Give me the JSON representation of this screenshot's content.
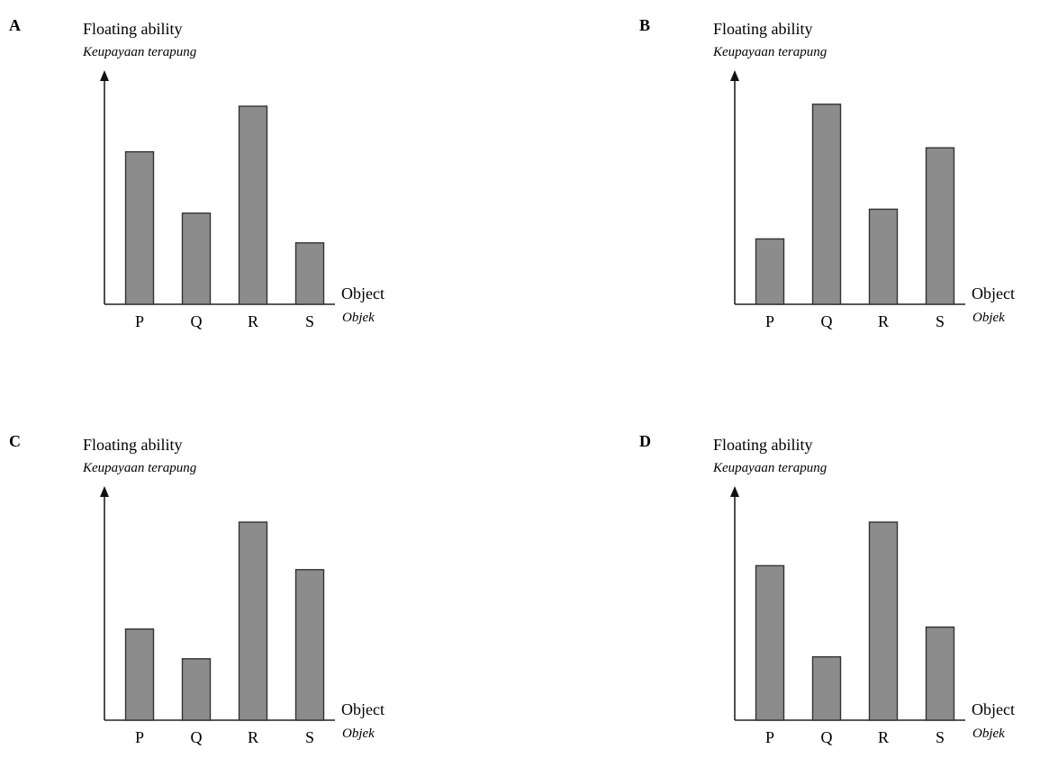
{
  "chart_data": [
    {
      "type": "bar",
      "option_label": "A",
      "ylabel": "Floating ability",
      "ylabel_sub": "Keupayaan terapung",
      "xlabel": "Object",
      "xlabel_sub": "Objek",
      "categories": [
        "P",
        "Q",
        "R",
        "S"
      ],
      "values": [
        77,
        46,
        100,
        31
      ],
      "ylim": [
        0,
        110
      ],
      "bar_color": "#8c8c8c",
      "grid": false
    },
    {
      "type": "bar",
      "option_label": "B",
      "ylabel": "Floating ability",
      "ylabel_sub": "Keupayaan terapung",
      "xlabel": "Object",
      "xlabel_sub": "Objek",
      "categories": [
        "P",
        "Q",
        "R",
        "S"
      ],
      "values": [
        33,
        101,
        48,
        79
      ],
      "ylim": [
        0,
        110
      ],
      "bar_color": "#8c8c8c",
      "grid": false
    },
    {
      "type": "bar",
      "option_label": "C",
      "ylabel": "Floating ability",
      "ylabel_sub": "Keupayaan terapung",
      "xlabel": "Object",
      "xlabel_sub": "Objek",
      "categories": [
        "P",
        "Q",
        "R",
        "S"
      ],
      "values": [
        46,
        31,
        100,
        76
      ],
      "ylim": [
        0,
        110
      ],
      "bar_color": "#8c8c8c",
      "grid": false
    },
    {
      "type": "bar",
      "option_label": "D",
      "ylabel": "Floating ability",
      "ylabel_sub": "Keupayaan terapung",
      "xlabel": "Object",
      "xlabel_sub": "Objek",
      "categories": [
        "P",
        "Q",
        "R",
        "S"
      ],
      "values": [
        78,
        32,
        100,
        47
      ],
      "ylim": [
        0,
        110
      ],
      "bar_color": "#8c8c8c",
      "grid": false
    }
  ]
}
